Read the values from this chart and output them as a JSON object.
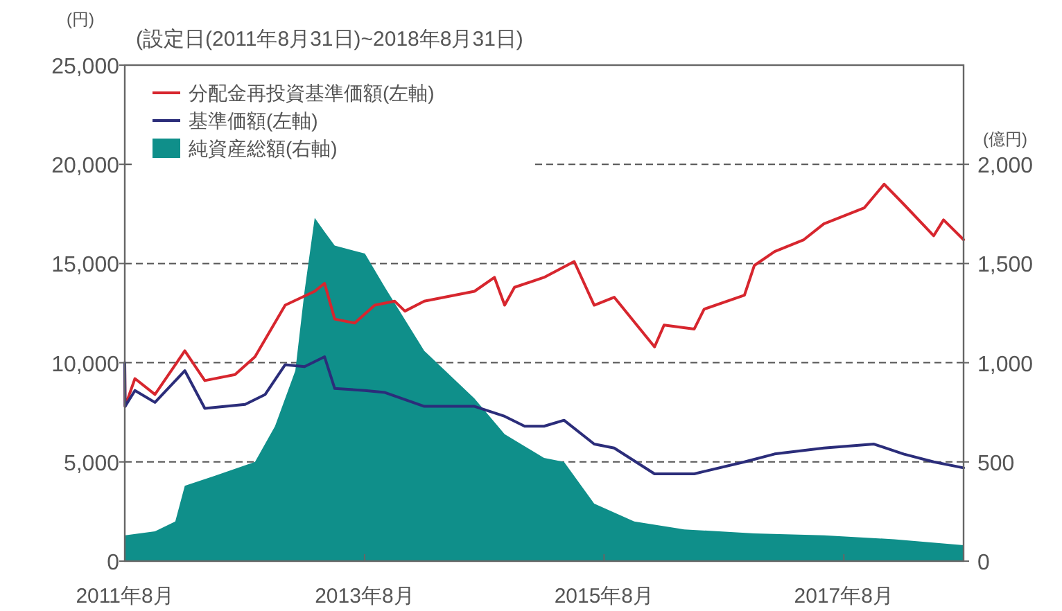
{
  "chart_data": {
    "type": "line",
    "title": "(設定日(2011年8月31日)~2018年8月31日)",
    "ylabel": "(円)",
    "y2label": "(億円)",
    "xlim": [
      "2011-08-31",
      "2018-08-31"
    ],
    "xticks": [
      {
        "value": "2011-08-31",
        "label": "2011年8月"
      },
      {
        "value": "2013-08-31",
        "label": "2013年8月"
      },
      {
        "value": "2015-08-31",
        "label": "2015年8月"
      },
      {
        "value": "2017-08-31",
        "label": "2017年8月"
      }
    ],
    "ylim": [
      0,
      25000
    ],
    "yticks": [
      0,
      {
        "value": 5000,
        "label": "5,000"
      },
      {
        "value": 10000,
        "label": "10,000"
      },
      {
        "value": 15000,
        "label": "15,000"
      },
      {
        "value": 20000,
        "label": "20,000"
      },
      {
        "value": 25000,
        "label": "25,000"
      }
    ],
    "y2lim": [
      0,
      2500
    ],
    "y2ticks": [
      0,
      500,
      {
        "value": 1000,
        "label": "1,000"
      },
      {
        "value": 1500,
        "label": "1,500"
      },
      {
        "value": 2000,
        "label": "2,000"
      }
    ],
    "grid": "y",
    "legend": "top left",
    "series": [
      {
        "name": "純資産総額(右軸)",
        "type": "area",
        "axis": "y2",
        "color": "#0f8f8a",
        "x": [
          "2011-08-31",
          "2011-09",
          "2011-12",
          "2012-02",
          "2012-03",
          "2012-06",
          "2012-10",
          "2012-12",
          "2013-02",
          "2013-03",
          "2013-04",
          "2013-05",
          "2013-06",
          "2013-09",
          "2013-11",
          "2014-03",
          "2014-08",
          "2014-11",
          "2015-03",
          "2015-05",
          "2015-08",
          "2015-12",
          "2016-05",
          "2016-12",
          "2017-07",
          "2018-02",
          "2018-08-31"
        ],
        "values": [
          60,
          130,
          150,
          200,
          380,
          430,
          500,
          680,
          960,
          1360,
          1730,
          1660,
          1590,
          1550,
          1380,
          1060,
          820,
          640,
          520,
          500,
          290,
          200,
          160,
          140,
          130,
          110,
          80
        ]
      },
      {
        "name": "分配金再投資基準価額(左軸)",
        "color": "#d7262e",
        "x": [
          "2011-08-31",
          "2011-09",
          "2011-10",
          "2011-12",
          "2012-03",
          "2012-05",
          "2012-08",
          "2012-10",
          "2013-01",
          "2013-04",
          "2013-05",
          "2013-06",
          "2013-08",
          "2013-10",
          "2013-12",
          "2014-01",
          "2014-03",
          "2014-08",
          "2014-10",
          "2014-11",
          "2014-12",
          "2015-03",
          "2015-06",
          "2015-08",
          "2015-10",
          "2016-02",
          "2016-03",
          "2016-06",
          "2016-07",
          "2016-11",
          "2016-12",
          "2017-02",
          "2017-05",
          "2017-07",
          "2017-11",
          "2018-01",
          "2018-03",
          "2018-06",
          "2018-07",
          "2018-08-31"
        ],
        "values": [
          9900,
          7800,
          9200,
          8400,
          10600,
          9100,
          9400,
          10300,
          12900,
          13600,
          14000,
          12200,
          12000,
          12900,
          13100,
          12600,
          13100,
          13600,
          14300,
          12900,
          13800,
          14300,
          15100,
          12900,
          13300,
          10800,
          11900,
          11700,
          12700,
          13400,
          14900,
          15600,
          16200,
          17000,
          17800,
          19000,
          18000,
          16400,
          17200,
          16200
        ]
      },
      {
        "name": "基準価額(左軸)",
        "color": "#2b2d7a",
        "x": [
          "2011-08-31",
          "2011-09",
          "2011-10",
          "2011-12",
          "2012-03",
          "2012-05",
          "2012-09",
          "2012-11",
          "2013-01",
          "2013-03",
          "2013-05",
          "2013-06",
          "2013-09",
          "2013-11",
          "2014-03",
          "2014-08",
          "2014-11",
          "2015-01",
          "2015-03",
          "2015-05",
          "2015-08",
          "2015-10",
          "2016-02",
          "2016-06",
          "2016-11",
          "2017-02",
          "2017-07",
          "2017-12",
          "2018-03",
          "2018-06",
          "2018-08-31"
        ],
        "values": [
          10000,
          7800,
          8600,
          8000,
          9600,
          7700,
          7900,
          8400,
          9900,
          9800,
          10300,
          8700,
          8600,
          8500,
          7800,
          7800,
          7300,
          6800,
          6800,
          7100,
          5900,
          5700,
          4400,
          4400,
          5000,
          5400,
          5700,
          5900,
          5400,
          5000,
          4700
        ]
      }
    ]
  }
}
